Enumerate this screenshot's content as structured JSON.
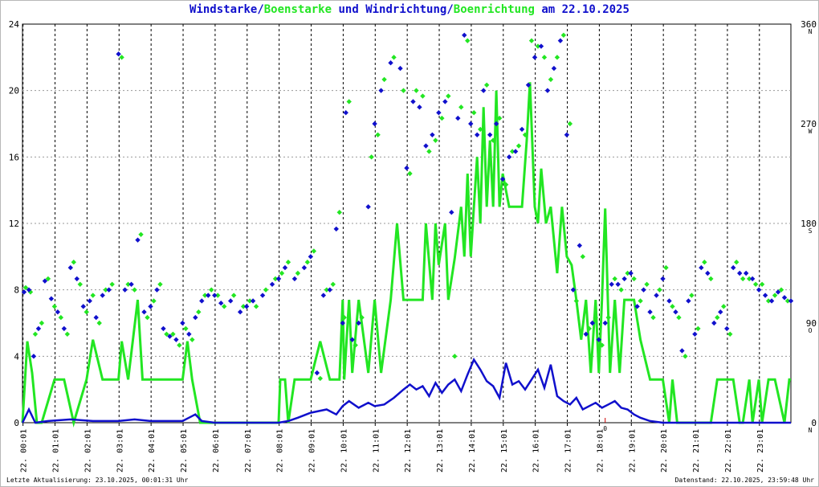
{
  "title": {
    "part1": "Windstarke",
    "sep1": "/",
    "part2": "Boenstarke",
    "mid": " und ",
    "part3": "Windrichtung",
    "sep2": "/",
    "part4": "Boenrichtung",
    "tail": " am 22.10.2025"
  },
  "footer": {
    "left": "Letzte Aktualisierung: 23.10.2025, 00:01:31 Uhr",
    "right": "Datenstand: 22.10.2025, 23:59:48 Uhr"
  },
  "colors": {
    "wind": "#1010cc",
    "gust": "#22e622",
    "grid": "#000000",
    "marker": "#cc0000"
  },
  "chart_data": {
    "type": "line",
    "x_unit": "hour of day (0-24)",
    "x_ticks": [
      "22. 00:01",
      "22. 01:01",
      "22. 02:01",
      "22. 03:01",
      "22. 04:01",
      "22. 05:01",
      "22. 06:01",
      "22. 07:01",
      "22. 08:01",
      "22. 09:01",
      "22. 10:01",
      "22. 11:01",
      "22. 12:01",
      "22. 13:01",
      "22. 14:01",
      "22. 15:01",
      "22. 16:01",
      "22. 17:01",
      "22. 18:01",
      "22. 19:01",
      "22. 20:01",
      "22. 21:01",
      "22. 22:01",
      "22. 23:01"
    ],
    "ylim": [
      0,
      24
    ],
    "y_ticks": [
      0,
      4,
      8,
      12,
      16,
      20,
      24
    ],
    "y2lim": [
      0,
      360
    ],
    "y2_ticks": [
      {
        "v": 0,
        "label": "0",
        "dir": "N"
      },
      {
        "v": 90,
        "label": "90",
        "dir": "O"
      },
      {
        "v": 180,
        "label": "180",
        "dir": "S"
      },
      {
        "v": 270,
        "label": "270",
        "dir": "W"
      },
      {
        "v": 360,
        "label": "360",
        "dir": "N"
      }
    ],
    "calm_marker": {
      "x": 18.2,
      "label": "0"
    },
    "grid": true,
    "series": [
      {
        "name": "Windstarke",
        "axis": "left",
        "kind": "line",
        "x": [
          0,
          0.2,
          0.4,
          0.8,
          1.5,
          2.2,
          3.0,
          3.5,
          4.0,
          4.5,
          5.0,
          5.2,
          5.4,
          5.6,
          6.0,
          7.0,
          8.0,
          8.3,
          8.6,
          9.0,
          9.5,
          9.8,
          10.0,
          10.2,
          10.5,
          10.8,
          11.0,
          11.3,
          11.6,
          11.9,
          12.1,
          12.3,
          12.5,
          12.7,
          12.9,
          13.1,
          13.3,
          13.5,
          13.7,
          13.9,
          14.1,
          14.3,
          14.5,
          14.7,
          14.9,
          15.1,
          15.3,
          15.5,
          15.7,
          15.9,
          16.1,
          16.3,
          16.5,
          16.7,
          16.9,
          17.1,
          17.3,
          17.5,
          17.7,
          17.9,
          18.1,
          18.3,
          18.5,
          18.7,
          18.9,
          19.1,
          19.3,
          19.6,
          20.0,
          21.0,
          22.0,
          23.0,
          24.0
        ],
        "values": [
          0,
          0.8,
          0,
          0.1,
          0.2,
          0.1,
          0.1,
          0.2,
          0.1,
          0.1,
          0.1,
          0.3,
          0.5,
          0.1,
          0,
          0,
          0,
          0.1,
          0.3,
          0.6,
          0.8,
          0.5,
          1.0,
          1.3,
          0.9,
          1.2,
          1.0,
          1.1,
          1.5,
          2.0,
          2.3,
          2.0,
          2.2,
          1.6,
          2.4,
          1.8,
          2.3,
          2.6,
          1.9,
          2.9,
          3.8,
          3.2,
          2.5,
          2.2,
          1.5,
          3.6,
          2.3,
          2.5,
          2.0,
          2.6,
          3.2,
          2.1,
          3.5,
          1.6,
          1.3,
          1.1,
          1.5,
          0.8,
          1.0,
          1.2,
          0.9,
          1.1,
          1.3,
          0.9,
          0.8,
          0.5,
          0.3,
          0.1,
          0,
          0,
          0,
          0,
          0
        ]
      },
      {
        "name": "Boenstarke",
        "axis": "left",
        "kind": "step",
        "x": [
          0,
          0.15,
          0.3,
          0.45,
          0.6,
          1.0,
          1.15,
          1.3,
          1.6,
          2.0,
          2.2,
          2.5,
          3.0,
          3.1,
          3.3,
          3.6,
          3.75,
          3.9,
          4.0,
          4.5,
          5.0,
          5.15,
          5.3,
          5.55,
          7.5,
          8.0,
          8.05,
          8.2,
          8.3,
          8.5,
          9.0,
          9.3,
          9.6,
          9.9,
          10.0,
          10.05,
          10.2,
          10.3,
          10.5,
          10.8,
          11.0,
          11.2,
          11.5,
          11.7,
          11.9,
          12.05,
          12.2,
          12.5,
          12.6,
          12.8,
          12.9,
          13.0,
          13.2,
          13.3,
          13.5,
          13.7,
          13.8,
          13.9,
          14.0,
          14.1,
          14.2,
          14.3,
          14.4,
          14.5,
          14.6,
          14.7,
          14.8,
          14.9,
          15.0,
          15.2,
          15.4,
          15.6,
          15.75,
          15.85,
          16.0,
          16.1,
          16.2,
          16.35,
          16.5,
          16.7,
          16.85,
          17.0,
          17.15,
          17.3,
          17.45,
          17.6,
          17.75,
          17.9,
          18.0,
          18.1,
          18.2,
          18.35,
          18.5,
          18.65,
          18.8,
          18.95,
          19.1,
          19.3,
          19.6,
          20.0,
          20.2,
          20.3,
          20.45,
          21.0,
          21.5,
          21.7,
          22.2,
          22.4,
          22.5,
          22.7,
          22.8,
          23.0,
          23.1,
          23.3,
          23.5,
          23.8,
          23.95,
          24.0
        ],
        "values": [
          0,
          4.9,
          3.0,
          0,
          0,
          2.6,
          2.6,
          2.6,
          0,
          2.6,
          5.0,
          2.6,
          2.6,
          4.9,
          2.6,
          7.4,
          2.6,
          2.6,
          2.6,
          2.6,
          2.6,
          4.9,
          2.6,
          0,
          0,
          0,
          2.6,
          2.6,
          0,
          2.6,
          2.6,
          4.9,
          2.6,
          2.6,
          7.4,
          2.6,
          7.4,
          3.0,
          7.4,
          3.0,
          7.4,
          3.0,
          7.4,
          12.0,
          7.4,
          7.4,
          7.4,
          7.4,
          12.0,
          7.4,
          12.0,
          9.5,
          12.0,
          7.4,
          9.9,
          13.0,
          10.0,
          15.0,
          10.0,
          13.0,
          16.0,
          12.0,
          19.0,
          13.0,
          17.0,
          13.0,
          20.0,
          13.0,
          15.0,
          13.0,
          13.0,
          13.0,
          17.0,
          20.5,
          13.0,
          12.0,
          15.3,
          12.0,
          13.0,
          9.0,
          13.0,
          10.0,
          9.5,
          7.4,
          5.0,
          7.4,
          3.0,
          7.4,
          3.0,
          7.4,
          12.9,
          3.0,
          7.4,
          3.0,
          7.4,
          7.4,
          7.4,
          5.0,
          2.6,
          2.6,
          0,
          2.6,
          0,
          0,
          0,
          2.6,
          2.6,
          0,
          0,
          2.6,
          0,
          2.6,
          0,
          2.6,
          2.6,
          0,
          2.6,
          2.6
        ]
      },
      {
        "name": "Windrichtung",
        "axis": "right",
        "kind": "points",
        "x": [
          0.05,
          0.2,
          0.35,
          0.5,
          0.7,
          0.9,
          1.1,
          1.3,
          1.5,
          1.7,
          1.9,
          2.1,
          2.3,
          2.5,
          2.7,
          3.0,
          3.2,
          3.4,
          3.6,
          3.8,
          4.0,
          4.2,
          4.4,
          4.6,
          4.8,
          5.0,
          5.2,
          5.4,
          5.6,
          5.8,
          6.0,
          6.2,
          6.5,
          6.8,
          7.0,
          7.2,
          7.5,
          7.8,
          8.0,
          8.2,
          8.5,
          8.8,
          9.0,
          9.2,
          9.4,
          9.6,
          9.8,
          10.0,
          10.1,
          10.3,
          10.5,
          10.8,
          11.0,
          11.2,
          11.5,
          11.8,
          12.0,
          12.2,
          12.4,
          12.6,
          12.8,
          13.0,
          13.2,
          13.4,
          13.6,
          13.8,
          14.0,
          14.2,
          14.4,
          14.6,
          14.8,
          15.0,
          15.2,
          15.4,
          15.6,
          15.8,
          16.0,
          16.2,
          16.4,
          16.6,
          16.8,
          17.0,
          17.2,
          17.4,
          17.6,
          17.8,
          18.0,
          18.2,
          18.4,
          18.6,
          18.8,
          19.0,
          19.2,
          19.4,
          19.6,
          19.8,
          20.0,
          20.2,
          20.4,
          20.6,
          20.8,
          21.0,
          21.2,
          21.4,
          21.6,
          21.8,
          22.0,
          22.2,
          22.4,
          22.6,
          22.8,
          23.0,
          23.2,
          23.4,
          23.6,
          23.8,
          24.0
        ],
        "values": [
          118,
          120,
          60,
          85,
          128,
          112,
          100,
          85,
          140,
          130,
          105,
          110,
          95,
          115,
          120,
          333,
          120,
          125,
          165,
          100,
          105,
          120,
          85,
          78,
          75,
          90,
          80,
          95,
          110,
          115,
          115,
          108,
          110,
          100,
          105,
          110,
          115,
          125,
          130,
          140,
          130,
          140,
          150,
          45,
          115,
          120,
          175,
          90,
          280,
          75,
          90,
          195,
          270,
          300,
          325,
          320,
          230,
          290,
          285,
          250,
          260,
          280,
          290,
          190,
          275,
          350,
          270,
          260,
          300,
          260,
          270,
          220,
          240,
          245,
          265,
          305,
          330,
          340,
          300,
          320,
          345,
          260,
          120,
          160,
          80,
          90,
          75,
          90,
          125,
          125,
          130,
          135,
          105,
          120,
          100,
          115,
          130,
          110,
          100,
          65,
          110,
          80,
          140,
          135,
          90,
          100,
          85,
          140,
          135,
          135,
          130,
          120,
          115,
          110,
          118,
          113,
          110
        ]
      },
      {
        "name": "Boenrichtung",
        "axis": "right",
        "kind": "points",
        "x": [
          0.1,
          0.25,
          0.4,
          0.6,
          0.8,
          1.0,
          1.2,
          1.4,
          1.6,
          1.8,
          2.0,
          2.2,
          2.4,
          2.6,
          2.8,
          3.1,
          3.3,
          3.5,
          3.7,
          3.9,
          4.1,
          4.3,
          4.5,
          4.7,
          4.9,
          5.1,
          5.3,
          5.5,
          5.7,
          5.9,
          6.1,
          6.3,
          6.6,
          6.9,
          7.1,
          7.3,
          7.6,
          7.9,
          8.1,
          8.3,
          8.6,
          8.9,
          9.1,
          9.3,
          9.5,
          9.7,
          9.9,
          10.05,
          10.2,
          10.4,
          10.6,
          10.9,
          11.1,
          11.3,
          11.6,
          11.9,
          12.1,
          12.3,
          12.5,
          12.7,
          12.9,
          13.1,
          13.3,
          13.5,
          13.7,
          13.9,
          14.1,
          14.3,
          14.5,
          14.7,
          14.9,
          15.1,
          15.3,
          15.5,
          15.7,
          15.9,
          16.1,
          16.3,
          16.5,
          16.7,
          16.9,
          17.1,
          17.3,
          17.5,
          17.7,
          17.9,
          18.1,
          18.3,
          18.5,
          18.7,
          18.9,
          19.1,
          19.3,
          19.5,
          19.7,
          19.9,
          20.1,
          20.3,
          20.5,
          20.7,
          20.9,
          21.1,
          21.3,
          21.5,
          21.7,
          21.9,
          22.1,
          22.3,
          22.5,
          22.7,
          22.9,
          23.1,
          23.3,
          23.5,
          23.7,
          23.9
        ],
        "values": [
          122,
          118,
          80,
          90,
          130,
          105,
          95,
          80,
          145,
          125,
          100,
          115,
          90,
          120,
          125,
          330,
          125,
          120,
          170,
          95,
          110,
          125,
          80,
          80,
          70,
          85,
          75,
          100,
          115,
          120,
          115,
          105,
          115,
          105,
          110,
          105,
          120,
          130,
          135,
          145,
          135,
          145,
          155,
          40,
          120,
          125,
          190,
          95,
          290,
          70,
          95,
          240,
          260,
          310,
          330,
          300,
          225,
          300,
          295,
          245,
          255,
          275,
          295,
          60,
          285,
          345,
          280,
          265,
          305,
          255,
          275,
          215,
          245,
          250,
          260,
          345,
          340,
          330,
          310,
          330,
          350,
          270,
          110,
          150,
          85,
          95,
          70,
          95,
          130,
          120,
          135,
          130,
          110,
          125,
          95,
          120,
          140,
          105,
          95,
          60,
          115,
          85,
          145,
          130,
          95,
          105,
          80,
          145,
          130,
          130,
          125,
          125,
          110,
          115,
          120,
          110
        ]
      }
    ]
  }
}
